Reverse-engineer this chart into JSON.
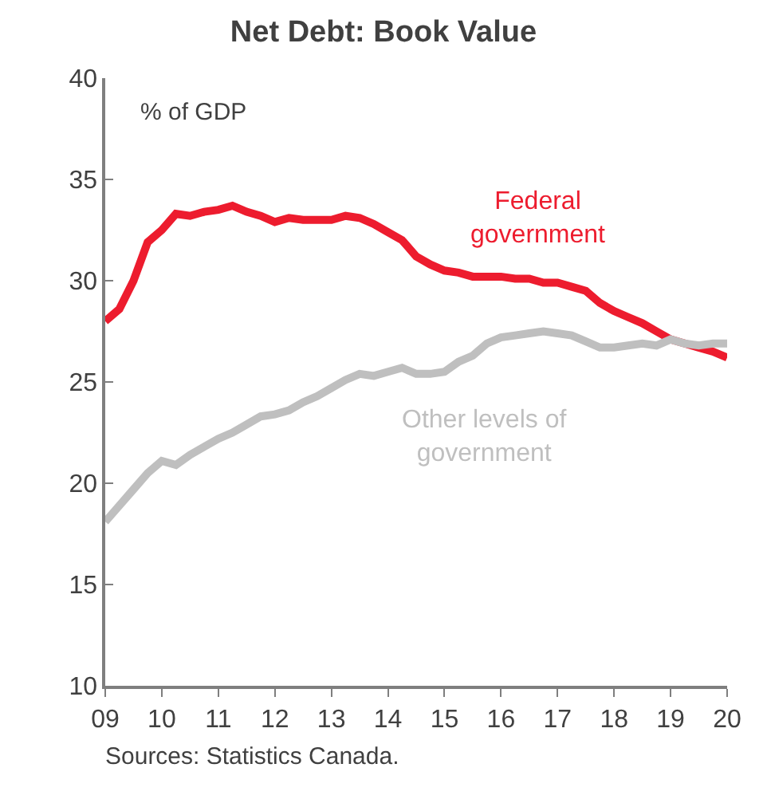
{
  "chart_data": {
    "type": "line",
    "title": "Net Debt: Book Value",
    "ylabel": "% of GDP",
    "x": [
      2009,
      2009.25,
      2009.5,
      2009.75,
      2010,
      2010.25,
      2010.5,
      2010.75,
      2011,
      2011.25,
      2011.5,
      2011.75,
      2012,
      2012.25,
      2012.5,
      2012.75,
      2013,
      2013.25,
      2013.5,
      2013.75,
      2014,
      2014.25,
      2014.5,
      2014.75,
      2015,
      2015.25,
      2015.5,
      2015.75,
      2016,
      2016.25,
      2016.5,
      2016.75,
      2017,
      2017.25,
      2017.5,
      2017.75,
      2018,
      2018.25,
      2018.5,
      2018.75,
      2019,
      2019.25,
      2019.5,
      2019.75,
      2020
    ],
    "series": [
      {
        "name": "Federal government",
        "color": "#ed1c2e",
        "values": [
          28.0,
          28.6,
          30.0,
          31.9,
          32.5,
          33.3,
          33.2,
          33.4,
          33.5,
          33.7,
          33.4,
          33.2,
          32.9,
          33.1,
          33.0,
          33.0,
          33.0,
          33.2,
          33.1,
          32.8,
          32.4,
          32.0,
          31.2,
          30.8,
          30.5,
          30.4,
          30.2,
          30.2,
          30.2,
          30.1,
          30.1,
          29.9,
          29.9,
          29.7,
          29.5,
          28.9,
          28.5,
          28.2,
          27.9,
          27.5,
          27.1,
          26.9,
          26.7,
          26.5,
          26.2
        ]
      },
      {
        "name": "Other levels of government",
        "color": "#bfbfbf",
        "values": [
          18.1,
          18.9,
          19.7,
          20.5,
          21.1,
          20.9,
          21.4,
          21.8,
          22.2,
          22.5,
          22.9,
          23.3,
          23.4,
          23.6,
          24.0,
          24.3,
          24.7,
          25.1,
          25.4,
          25.3,
          25.5,
          25.7,
          25.4,
          25.4,
          25.5,
          26.0,
          26.3,
          26.9,
          27.2,
          27.3,
          27.4,
          27.5,
          27.4,
          27.3,
          27.0,
          26.7,
          26.7,
          26.8,
          26.9,
          26.8,
          27.1,
          26.9,
          26.8,
          26.9,
          26.9
        ]
      }
    ],
    "xlim": [
      2009,
      2020
    ],
    "xticks": [
      {
        "value": 2009,
        "label": "09"
      },
      {
        "value": 2010,
        "label": "10"
      },
      {
        "value": 2011,
        "label": "11"
      },
      {
        "value": 2012,
        "label": "12"
      },
      {
        "value": 2013,
        "label": "13"
      },
      {
        "value": 2014,
        "label": "14"
      },
      {
        "value": 2015,
        "label": "15"
      },
      {
        "value": 2016,
        "label": "16"
      },
      {
        "value": 2017,
        "label": "17"
      },
      {
        "value": 2018,
        "label": "18"
      },
      {
        "value": 2019,
        "label": "19"
      },
      {
        "value": 2020,
        "label": "20"
      }
    ],
    "ylim": [
      10,
      40
    ],
    "yticks": [
      10,
      15,
      20,
      25,
      30,
      35,
      40
    ],
    "grid": false,
    "legend": false,
    "marker": "none",
    "line_style": "solid",
    "annotations": [
      "Sources: Statistics Canada."
    ]
  }
}
